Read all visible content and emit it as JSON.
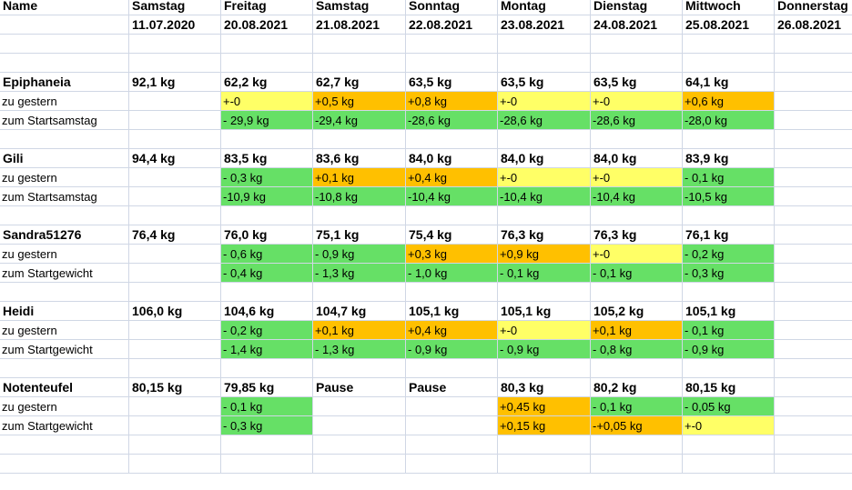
{
  "columns": [
    {
      "day": "Name",
      "date": ""
    },
    {
      "day": "Samstag",
      "date": "11.07.2020"
    },
    {
      "day": "Freitag",
      "date": "20.08.2021"
    },
    {
      "day": "Samstag",
      "date": "21.08.2021"
    },
    {
      "day": "Sonntag",
      "date": "22.08.2021"
    },
    {
      "day": "Montag",
      "date": "23.08.2021"
    },
    {
      "day": "Dienstag",
      "date": "24.08.2021"
    },
    {
      "day": "Mittwoch",
      "date": "25.08.2021"
    },
    {
      "day": "Donnerstag",
      "date": "26.08.2021"
    }
  ],
  "groups": [
    {
      "name": "Epiphaneia",
      "start": "92,1 kg",
      "weights": [
        "62,2 kg",
        "62,7 kg",
        "63,5 kg",
        "63,5 kg",
        "63,5 kg",
        "64,1 kg",
        ""
      ],
      "rows": [
        {
          "label": "zu gestern",
          "values": [
            "+-0",
            "+0,5 kg",
            "+0,8 kg",
            "+-0",
            "+-0",
            "+0,6 kg",
            ""
          ],
          "colors": [
            "y",
            "o",
            "o",
            "y",
            "y",
            "o",
            ""
          ]
        },
        {
          "label": "zum Startsamstag",
          "values": [
            "- 29,9 kg",
            "-29,4 kg",
            "-28,6 kg",
            "-28,6 kg",
            "-28,6 kg",
            "-28,0 kg",
            ""
          ],
          "colors": [
            "g",
            "g",
            "g",
            "g",
            "g",
            "g",
            ""
          ]
        }
      ]
    },
    {
      "name": "Gili",
      "start": "94,4 kg",
      "weights": [
        "83,5 kg",
        "83,6 kg",
        "84,0 kg",
        "84,0 kg",
        "84,0 kg",
        "83,9 kg",
        ""
      ],
      "rows": [
        {
          "label": "zu gestern",
          "values": [
            "- 0,3 kg",
            "+0,1 kg",
            "+0,4 kg",
            "+-0",
            "+-0",
            "- 0,1 kg",
            ""
          ],
          "colors": [
            "g",
            "o",
            "o",
            "y",
            "y",
            "g",
            ""
          ]
        },
        {
          "label": "zum Startsamstag",
          "values": [
            "-10,9 kg",
            "-10,8 kg",
            "-10,4 kg",
            "-10,4 kg",
            "-10,4 kg",
            "-10,5 kg",
            ""
          ],
          "colors": [
            "g",
            "g",
            "g",
            "g",
            "g",
            "g",
            ""
          ]
        }
      ]
    },
    {
      "name": "Sandra51276",
      "start": "76,4 kg",
      "weights": [
        "76,0 kg",
        "75,1 kg",
        "75,4 kg",
        "76,3 kg",
        "76,3 kg",
        "76,1 kg",
        ""
      ],
      "rows": [
        {
          "label": "zu gestern",
          "values": [
            "- 0,6 kg",
            "- 0,9 kg",
            "+0,3 kg",
            "+0,9 kg",
            "+-0",
            "- 0,2 kg",
            ""
          ],
          "colors": [
            "g",
            "g",
            "o",
            "o",
            "y",
            "g",
            ""
          ]
        },
        {
          "label": "zum Startgewicht",
          "values": [
            "- 0,4 kg",
            "- 1,3 kg",
            "- 1,0 kg",
            "- 0,1 kg",
            "- 0,1 kg",
            "- 0,3 kg",
            ""
          ],
          "colors": [
            "g",
            "g",
            "g",
            "g",
            "g",
            "g",
            ""
          ]
        }
      ]
    },
    {
      "name": "Heidi",
      "start": "106,0 kg",
      "weights": [
        "104,6 kg",
        "104,7 kg",
        "105,1 kg",
        "105,1 kg",
        "105,2 kg",
        "105,1 kg",
        ""
      ],
      "rows": [
        {
          "label": "zu gestern",
          "values": [
            "- 0,2 kg",
            "+0,1 kg",
            "+0,4 kg",
            "+-0",
            "+0,1 kg",
            "- 0,1 kg",
            ""
          ],
          "colors": [
            "g",
            "o",
            "o",
            "y",
            "o",
            "g",
            ""
          ]
        },
        {
          "label": "zum Startgewicht",
          "values": [
            "- 1,4 kg",
            "- 1,3 kg",
            "- 0,9 kg",
            "- 0,9 kg",
            "- 0,8 kg",
            "- 0,9 kg",
            ""
          ],
          "colors": [
            "g",
            "g",
            "g",
            "g",
            "g",
            "g",
            ""
          ]
        }
      ]
    },
    {
      "name": "Notenteufel",
      "start": "80,15 kg",
      "weights": [
        "79,85 kg",
        "Pause",
        "Pause",
        "80,3 kg",
        "80,2 kg",
        "80,15 kg",
        ""
      ],
      "rows": [
        {
          "label": "zu gestern",
          "values": [
            "- 0,1 kg",
            "",
            "",
            "+0,45 kg",
            "- 0,1 kg",
            "- 0,05 kg",
            ""
          ],
          "colors": [
            "g",
            "",
            "",
            "o",
            "g",
            "g",
            ""
          ]
        },
        {
          "label": "zum Startgewicht",
          "values": [
            "- 0,3 kg",
            "",
            "",
            "+0,15 kg",
            "-+0,05 kg",
            "+-0",
            ""
          ],
          "colors": [
            "g",
            "",
            "",
            "o",
            "o",
            "y",
            ""
          ]
        }
      ]
    }
  ]
}
